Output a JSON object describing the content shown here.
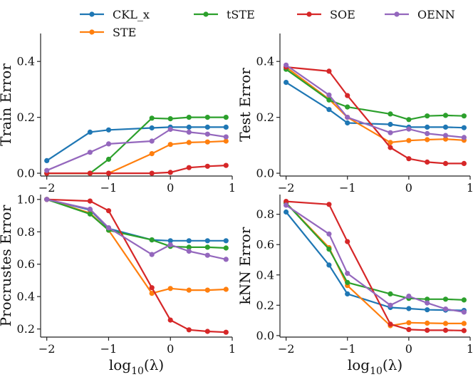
{
  "chart_data": {
    "type": "line",
    "legend": [
      {
        "name": "CKL_x",
        "color": "#1f77b4"
      },
      {
        "name": "tSTE",
        "color": "#2ca02c"
      },
      {
        "name": "SOE",
        "color": "#d62728"
      },
      {
        "name": "OENN",
        "color": "#9467bd"
      },
      {
        "name": "STE",
        "color": "#ff7f0e"
      }
    ],
    "x": [
      -2,
      -1.3,
      -1,
      -0.3,
      0,
      0.3,
      0.6,
      0.9
    ],
    "xticks": [
      -2,
      -1,
      0,
      1
    ],
    "xlabel_prefix": "log",
    "xlabel_sub": "10",
    "xlabel_suffix": "(λ)",
    "panels": [
      {
        "ylabel": "Train Error",
        "ylim": [
          -0.01,
          0.5
        ],
        "yticks": [
          0.0,
          0.2,
          0.4
        ],
        "ytick_labels": [
          "0.0",
          "0.2",
          "0.4"
        ],
        "series": [
          {
            "name": "CKL_x",
            "values": [
              0.045,
              0.147,
              0.155,
              0.162,
              0.165,
              0.165,
              0.165,
              0.165
            ]
          },
          {
            "name": "STE",
            "values": [
              0.0,
              0.0,
              0.0,
              0.07,
              0.103,
              0.11,
              0.112,
              0.115
            ]
          },
          {
            "name": "tSTE",
            "values": [
              0.0,
              0.0,
              0.05,
              0.197,
              0.195,
              0.2,
              0.2,
              0.2
            ]
          },
          {
            "name": "SOE",
            "values": [
              0.0,
              0.0,
              0.0,
              0.0,
              0.003,
              0.02,
              0.025,
              0.028
            ]
          },
          {
            "name": "OENN",
            "values": [
              0.01,
              0.075,
              0.105,
              0.115,
              0.157,
              0.147,
              0.14,
              0.13
            ]
          }
        ]
      },
      {
        "ylabel": "Test Error",
        "ylim": [
          -0.01,
          0.5
        ],
        "yticks": [
          0.0,
          0.2,
          0.4
        ],
        "ytick_labels": [
          "0.0",
          "0.2",
          "0.4"
        ],
        "series": [
          {
            "name": "CKL_x",
            "values": [
              0.325,
              0.228,
              0.18,
              0.175,
              0.165,
              0.165,
              0.165,
              0.163
            ]
          },
          {
            "name": "STE",
            "values": [
              0.38,
              0.265,
              0.2,
              0.11,
              0.117,
              0.12,
              0.122,
              0.118
            ]
          },
          {
            "name": "tSTE",
            "values": [
              0.372,
              0.262,
              0.237,
              0.212,
              0.192,
              0.205,
              0.207,
              0.205
            ]
          },
          {
            "name": "SOE",
            "values": [
              0.38,
              0.365,
              0.278,
              0.092,
              0.052,
              0.04,
              0.035,
              0.035
            ]
          },
          {
            "name": "OENN",
            "values": [
              0.387,
              0.28,
              0.2,
              0.145,
              0.158,
              0.142,
              0.135,
              0.128
            ]
          }
        ]
      },
      {
        "ylabel": "Procrustes Error",
        "ylim": [
          0.15,
          1.03
        ],
        "yticks": [
          0.2,
          0.4,
          0.6,
          0.8,
          1.0
        ],
        "ytick_labels": [
          "0.2",
          "0.4",
          "0.6",
          "0.8",
          "1.0"
        ],
        "series": [
          {
            "name": "CKL_x",
            "values": [
              1.0,
              0.935,
              0.82,
              0.75,
              0.745,
              0.745,
              0.745,
              0.745
            ]
          },
          {
            "name": "STE",
            "values": [
              1.0,
              0.915,
              0.81,
              0.42,
              0.45,
              0.44,
              0.44,
              0.445
            ]
          },
          {
            "name": "tSTE",
            "values": [
              1.0,
              0.91,
              0.81,
              0.75,
              0.71,
              0.705,
              0.705,
              0.7
            ]
          },
          {
            "name": "SOE",
            "values": [
              1.0,
              0.99,
              0.93,
              0.455,
              0.255,
              0.195,
              0.185,
              0.18
            ]
          },
          {
            "name": "OENN",
            "values": [
              1.0,
              0.94,
              0.825,
              0.66,
              0.72,
              0.68,
              0.655,
              0.63
            ]
          }
        ]
      },
      {
        "ylabel": "kNN Error",
        "ylim": [
          -0.01,
          0.93
        ],
        "yticks": [
          0.0,
          0.2,
          0.4,
          0.6,
          0.8
        ],
        "ytick_labels": [
          "0.0",
          "0.2",
          "0.4",
          "0.6",
          "0.8"
        ],
        "series": [
          {
            "name": "CKL_x",
            "values": [
              0.815,
              0.465,
              0.275,
              0.185,
              0.178,
              0.17,
              0.168,
              0.166
            ]
          },
          {
            "name": "STE",
            "values": [
              0.875,
              0.58,
              0.33,
              0.065,
              0.085,
              0.082,
              0.08,
              0.08
            ]
          },
          {
            "name": "tSTE",
            "values": [
              0.875,
              0.57,
              0.35,
              0.275,
              0.245,
              0.24,
              0.24,
              0.235
            ]
          },
          {
            "name": "SOE",
            "values": [
              0.885,
              0.865,
              0.62,
              0.075,
              0.04,
              0.035,
              0.035,
              0.033
            ]
          },
          {
            "name": "OENN",
            "values": [
              0.86,
              0.67,
              0.41,
              0.2,
              0.26,
              0.215,
              0.175,
              0.155
            ]
          }
        ]
      }
    ]
  }
}
